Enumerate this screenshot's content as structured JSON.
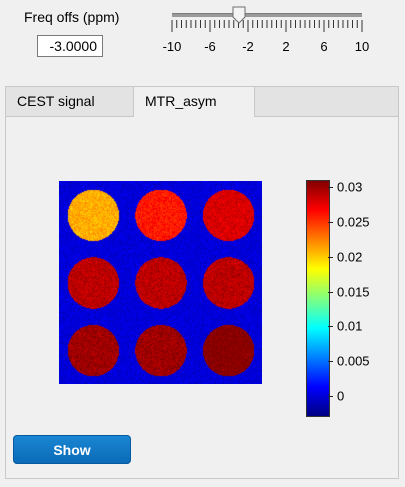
{
  "freq": {
    "label": "Freq offs (ppm)",
    "value": "-3.0000"
  },
  "slider": {
    "min": -10,
    "max": 10,
    "value": -3,
    "tick_labels": [
      "-10",
      "-6",
      "-2",
      "2",
      "6",
      "10"
    ],
    "minor_tick_step": 0.5,
    "major_tick_step": 4
  },
  "tabs": [
    {
      "label": "CEST signal",
      "selected": false
    },
    {
      "label": "MTR_asym",
      "selected": true
    }
  ],
  "map": {
    "grid_rows": 3,
    "grid_cols": 3,
    "background_value": 0.0,
    "vial_values": [
      0.021,
      0.026,
      0.028,
      0.029,
      0.029,
      0.029,
      0.03,
      0.03,
      0.031
    ]
  },
  "colorbar": {
    "min": -0.003,
    "max": 0.031,
    "ticks": [
      "0.03",
      "0.025",
      "0.02",
      "0.015",
      "0.01",
      "0.005",
      "0"
    ],
    "tick_values": [
      0.03,
      0.025,
      0.02,
      0.015,
      0.01,
      0.005,
      0
    ],
    "colormap": "jet"
  },
  "show_button": {
    "label": "Show"
  },
  "colors": {
    "accent": "#0b6bb8",
    "panel_bg": "#f0f0f0"
  }
}
